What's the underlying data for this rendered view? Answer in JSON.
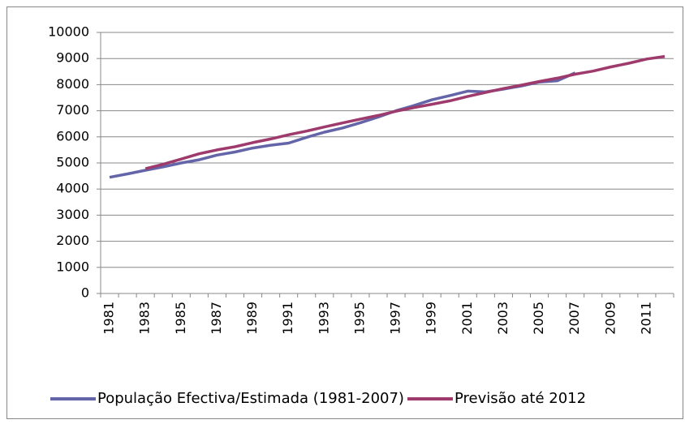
{
  "chart_data": {
    "type": "line",
    "categories": [
      "1981",
      null,
      "1983",
      null,
      "1985",
      null,
      "1987",
      null,
      "1989",
      null,
      "1991",
      null,
      "1993",
      null,
      "1995",
      null,
      "1997",
      null,
      "1999",
      null,
      "2001",
      null,
      "2003",
      null,
      "2005",
      null,
      "2007",
      null,
      "2009",
      null,
      "2011",
      null
    ],
    "series": [
      {
        "name": "População Efectiva/Estimada (1981-2007)",
        "color": "#6464a8",
        "values": [
          4450,
          4580,
          4720,
          4850,
          5000,
          5120,
          5300,
          5420,
          5570,
          5680,
          5760,
          5980,
          6180,
          6340,
          6540,
          6760,
          7000,
          7200,
          7420,
          7580,
          7750,
          7720,
          7830,
          7950,
          8100,
          8150,
          8450,
          null,
          null,
          null,
          null,
          null
        ]
      },
      {
        "name": "Previsão até 2012",
        "color": "#9e3a6c",
        "values": [
          null,
          null,
          4780,
          4950,
          5150,
          5350,
          5500,
          5620,
          5780,
          5920,
          6080,
          6220,
          6380,
          6530,
          6680,
          6820,
          6980,
          7120,
          7250,
          7380,
          7550,
          7700,
          7850,
          7980,
          8120,
          8250,
          8400,
          8520,
          8680,
          8820,
          8980,
          9080
        ]
      }
    ],
    "ylim": [
      0,
      10000
    ],
    "yticks": [
      0,
      1000,
      2000,
      3000,
      4000,
      5000,
      6000,
      7000,
      8000,
      9000,
      10000
    ],
    "grid": true,
    "legend": "bottom"
  }
}
